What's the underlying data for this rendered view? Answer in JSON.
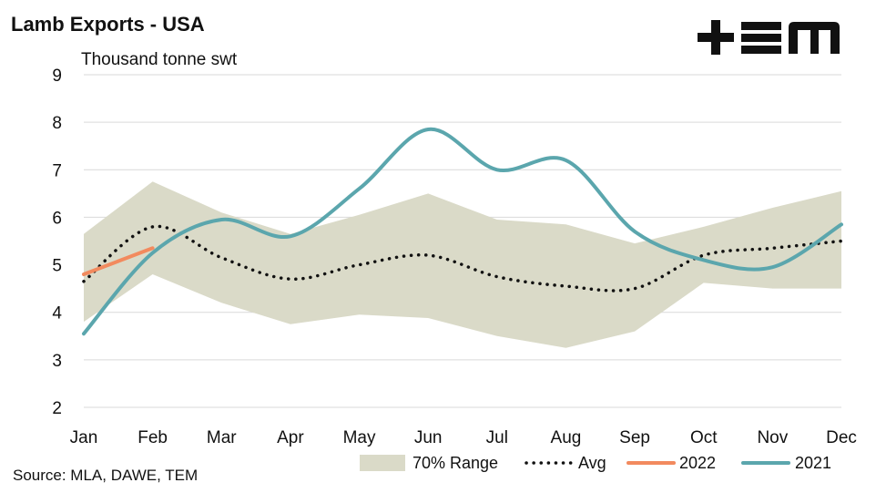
{
  "title": "Lamb Exports - USA",
  "source": "Source: MLA, DAWE, TEM",
  "logo_text": "+EM",
  "chart_data": {
    "type": "line",
    "title": "Lamb Exports - USA",
    "ylabel": "Thousand tonne swt",
    "xlabel": "",
    "categories": [
      "Jan",
      "Feb",
      "Mar",
      "Apr",
      "May",
      "Jun",
      "Jul",
      "Aug",
      "Sep",
      "Oct",
      "Nov",
      "Dec"
    ],
    "ylim": [
      2,
      9
    ],
    "yticks": [
      2,
      3,
      4,
      5,
      6,
      7,
      8,
      9
    ],
    "grid": true,
    "legend_position": "bottom",
    "range": {
      "name": "70% Range",
      "upper": [
        5.65,
        6.75,
        6.1,
        5.65,
        6.05,
        6.5,
        5.95,
        5.85,
        5.45,
        5.8,
        6.2,
        6.55
      ],
      "lower": [
        3.8,
        4.8,
        4.2,
        3.75,
        3.95,
        3.88,
        3.5,
        3.25,
        3.6,
        4.62,
        4.5,
        4.5
      ],
      "color": "#dadac8"
    },
    "series": [
      {
        "name": "Avg",
        "style": "dotted",
        "color": "#111111",
        "values": [
          4.65,
          5.8,
          5.15,
          4.7,
          5.0,
          5.2,
          4.75,
          4.55,
          4.5,
          5.2,
          5.35,
          5.5
        ]
      },
      {
        "name": "2022",
        "style": "solid",
        "color": "#f28a5e",
        "values": [
          4.8,
          5.35,
          null,
          null,
          null,
          null,
          null,
          null,
          null,
          null,
          null,
          null
        ]
      },
      {
        "name": "2021",
        "style": "solid",
        "color": "#5ba6ad",
        "values": [
          3.55,
          5.25,
          5.95,
          5.6,
          6.6,
          7.85,
          7.0,
          7.2,
          5.7,
          5.1,
          4.95,
          5.85
        ]
      }
    ]
  },
  "legend": [
    {
      "label": "70% Range",
      "kind": "area",
      "color": "#dadac8"
    },
    {
      "label": "Avg",
      "kind": "dotted",
      "color": "#111111"
    },
    {
      "label": "2022",
      "kind": "line",
      "color": "#f28a5e"
    },
    {
      "label": "2021",
      "kind": "line",
      "color": "#5ba6ad"
    }
  ]
}
